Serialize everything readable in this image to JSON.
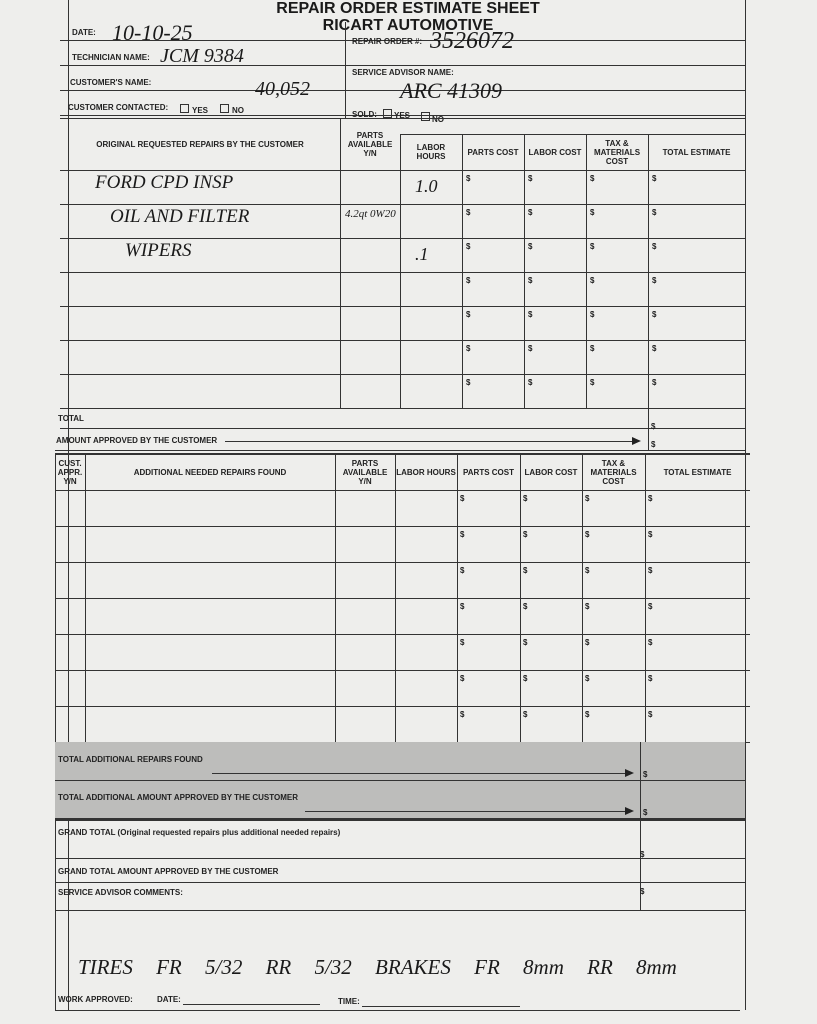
{
  "header": {
    "title": "REPAIR ORDER ESTIMATE SHEET",
    "company": "RICART AUTOMOTIVE"
  },
  "fields": {
    "date": {
      "label": "DATE:",
      "value": "10-10-25"
    },
    "technician": {
      "label": "TECHNICIAN NAME:",
      "value": "JCM 9384"
    },
    "customer": {
      "label": "CUSTOMER'S NAME:",
      "value": "40,052"
    },
    "repair_order": {
      "label": "REPAIR ORDER #:",
      "value": "3526072"
    },
    "service_advisor": {
      "label": "SERVICE ADVISOR NAME:",
      "value": "ARC 41309"
    }
  },
  "contacted": {
    "label": "CUSTOMER CONTACTED:",
    "yes": "YES",
    "no": "NO"
  },
  "sold": {
    "label": "SOLD:",
    "yes": "YES",
    "no": "NO"
  },
  "currency": "$",
  "original_repairs": {
    "columns": [
      "ORIGINAL REQUESTED REPAIRS BY THE CUSTOMER",
      "PARTS AVAILABLE Y/N",
      "LABOR HOURS",
      "PARTS COST",
      "LABOR COST",
      "TAX & MATERIALS COST",
      "TOTAL ESTIMATE"
    ],
    "rows": [
      {
        "description": "FORD CPD INSP",
        "labor_hours": "1.0"
      },
      {
        "description": "OIL AND FILTER",
        "parts_available": "4.2qt 0W20"
      },
      {
        "description": "WIPERS",
        "labor_hours": ".1"
      }
    ],
    "total": "TOTAL",
    "approved": "AMOUNT APPROVED BY THE CUSTOMER"
  },
  "additional_repairs": {
    "columns": [
      "CUST. APPR. Y/N",
      "ADDITIONAL NEEDED REPAIRS FOUND",
      "PARTS AVAILABLE Y/N",
      "LABOR HOURS",
      "PARTS COST",
      "LABOR COST",
      "TAX & MATERIALS COST",
      "TOTAL ESTIMATE"
    ]
  },
  "summary": {
    "additional_found": "TOTAL ADDITIONAL REPAIRS FOUND",
    "additional_approved": "TOTAL ADDITIONAL AMOUNT APPROVED BY THE CUSTOMER",
    "grand_total": "GRAND TOTAL (Original requested repairs plus additional needed repairs)",
    "grand_approved": "GRAND TOTAL AMOUNT APPROVED BY THE CUSTOMER",
    "comments_label": "SERVICE ADVISOR COMMENTS:",
    "comments": "TIRES FR 5/32 RR 5/32 BRAKES FR 8mm RR 8mm"
  },
  "footer": {
    "work_approved": "WORK APPROVED:",
    "date": "DATE:",
    "time": "TIME:"
  }
}
